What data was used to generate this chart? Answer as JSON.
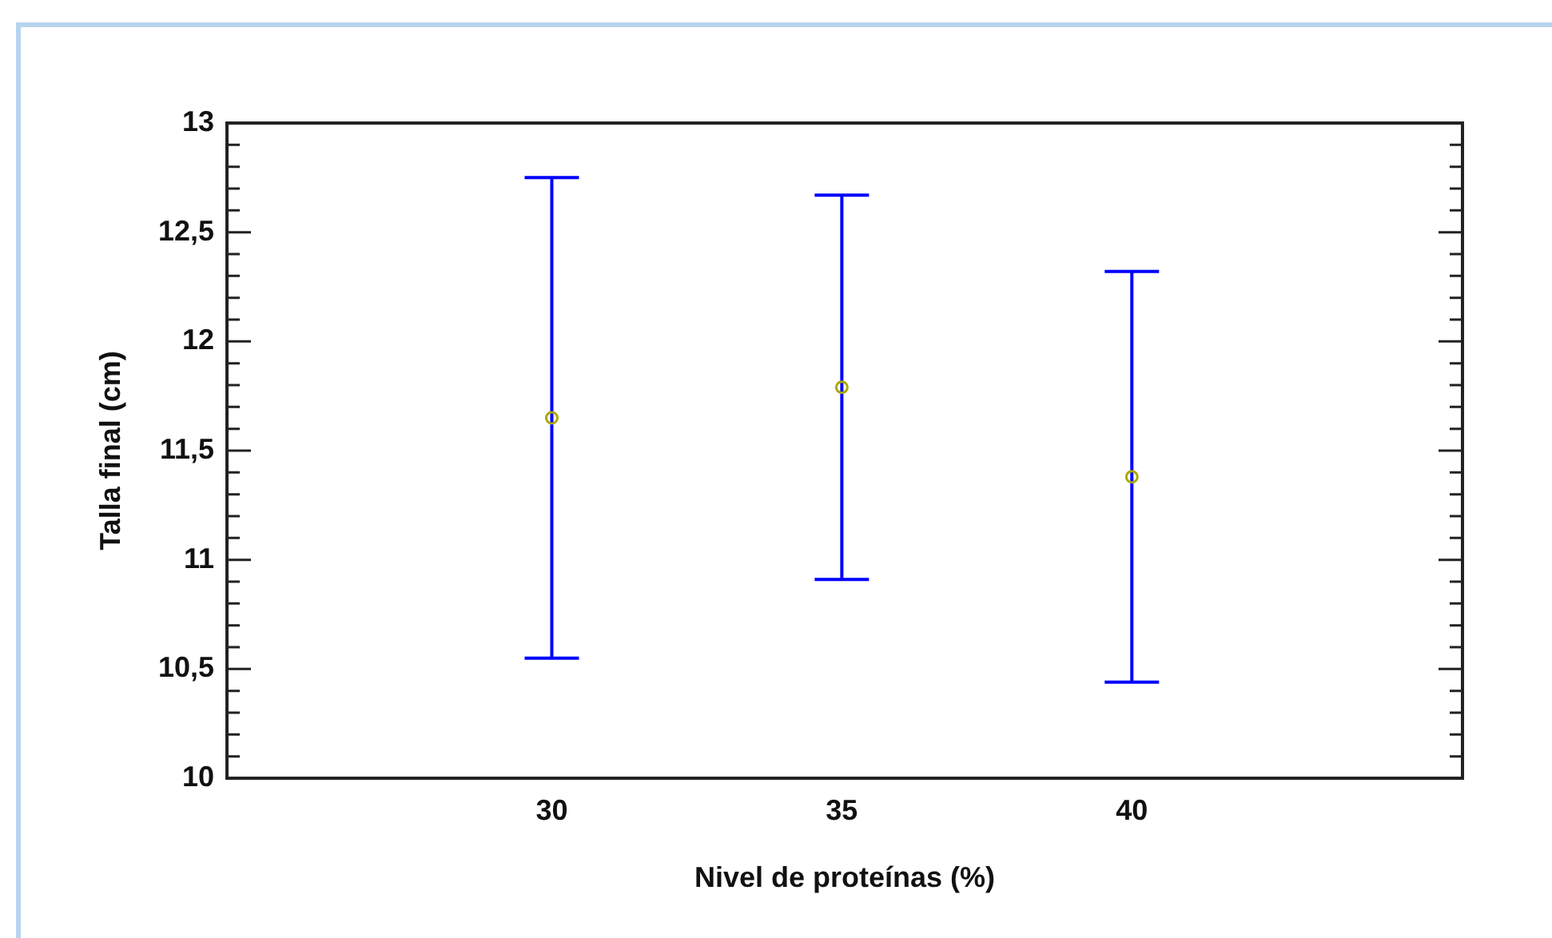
{
  "chart_data": {
    "type": "scatter",
    "xlabel": "Nivel de proteínas (%)",
    "ylabel": "Talla final (cm)",
    "x": [
      30,
      35,
      40
    ],
    "series": [
      {
        "color": "#a8a800",
        "values": [
          11.65,
          11.79,
          11.38
        ],
        "errors": [
          1.1,
          0.88,
          0.94
        ]
      }
    ],
    "xlim": [
      24.4,
      45.7
    ],
    "xticks": [
      30,
      35,
      40
    ],
    "ylim": [
      10,
      13
    ],
    "yticks": [
      10,
      {
        "value": 10.1,
        "label": null
      },
      {
        "value": 10.2,
        "label": null
      },
      {
        "value": 10.3,
        "label": null
      },
      {
        "value": 10.4,
        "label": null
      },
      {
        "value": 10.5,
        "label": "10,5"
      },
      {
        "value": 10.6,
        "label": null
      },
      {
        "value": 10.7,
        "label": null
      },
      {
        "value": 10.8,
        "label": null
      },
      {
        "value": 10.9,
        "label": null
      },
      11,
      {
        "value": 11.1,
        "label": null
      },
      {
        "value": 11.2,
        "label": null
      },
      {
        "value": 11.3,
        "label": null
      },
      {
        "value": 11.4,
        "label": null
      },
      {
        "value": 11.5,
        "label": "11,5"
      },
      {
        "value": 11.6,
        "label": null
      },
      {
        "value": 11.7,
        "label": null
      },
      {
        "value": 11.8,
        "label": null
      },
      {
        "value": 11.9,
        "label": null
      },
      12,
      {
        "value": 12.1,
        "label": null
      },
      {
        "value": 12.2,
        "label": null
      },
      {
        "value": 12.3,
        "label": null
      },
      {
        "value": 12.4,
        "label": null
      },
      {
        "value": 12.5,
        "label": "12,5"
      },
      {
        "value": 12.6,
        "label": null
      },
      {
        "value": 12.7,
        "label": null
      },
      {
        "value": 12.8,
        "label": null
      },
      {
        "value": 12.9,
        "label": null
      },
      13
    ],
    "marker": "circle",
    "grid": false,
    "legend": false
  }
}
